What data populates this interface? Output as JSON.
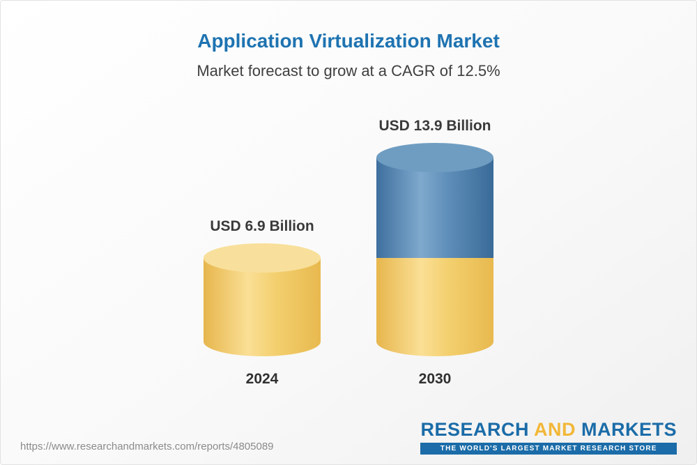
{
  "chart_data": {
    "type": "bar",
    "subtype": "3d-cylinder-stacked",
    "title": "Application Virtualization Market",
    "subtitle": "Market forecast to grow at a CAGR of 12.5%",
    "categories": [
      "2024",
      "2030"
    ],
    "values": [
      6.9,
      13.9
    ],
    "value_labels": [
      "USD 6.9 Billion",
      "USD 13.9 Billion"
    ],
    "unit": "USD Billion",
    "cagr_percent": 12.5,
    "grid": false,
    "legend": "none",
    "colors": {
      "base_segment": "#F3CF6E",
      "base_cap": "#F8E09C",
      "growth_segment": "#4A7CA9",
      "growth_cap": "#6F9DC2"
    }
  },
  "footer": {
    "url": "https://www.researchandmarkets.com/reports/4805089",
    "logo": {
      "research": "RESEARCH",
      "and": "AND",
      "markets": "MARKETS",
      "tagline": "THE WORLD'S LARGEST MARKET RESEARCH STORE"
    }
  },
  "colors": {
    "title_blue": "#1E73B1",
    "subtitle_gray": "#3F3F3F",
    "label_dark": "#3A3A3A",
    "url_gray": "#8B8B8B",
    "logo_blue": "#1B6CA8",
    "logo_gold": "#F2B738",
    "border": "#E2E2E2"
  }
}
